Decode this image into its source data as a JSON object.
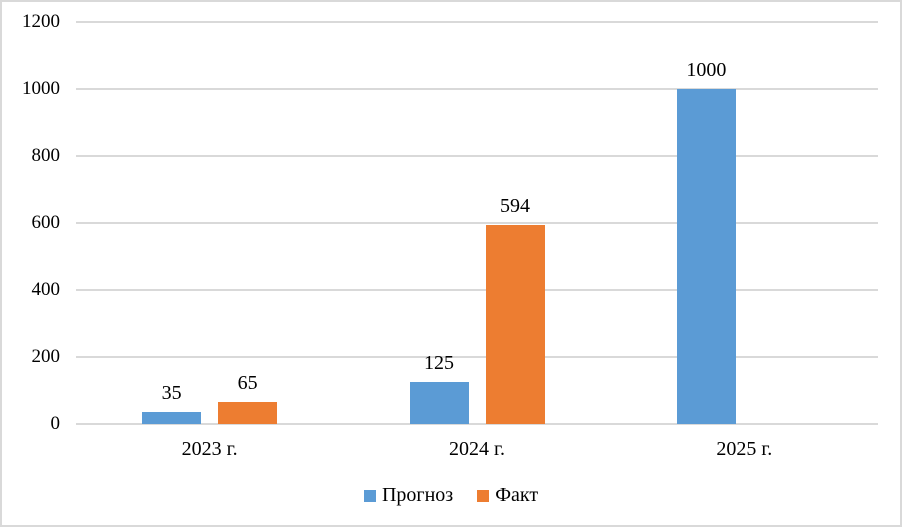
{
  "chart_data": {
    "type": "bar",
    "categories": [
      "2023 г.",
      "2024 г.",
      "2025 г."
    ],
    "series": [
      {
        "name": "Прогноз",
        "color": "#5B9BD5",
        "values": [
          35,
          125,
          1000
        ]
      },
      {
        "name": "Факт",
        "color": "#ED7D31",
        "values": [
          65,
          594,
          null
        ]
      }
    ],
    "title": "",
    "xlabel": "",
    "ylabel": "",
    "ylim": [
      0,
      1200
    ],
    "ytick_step": 200,
    "ytick_labels": [
      "0",
      "200",
      "400",
      "600",
      "800",
      "1000",
      "1200"
    ],
    "grid": true,
    "data_labels": true,
    "legend_position": "bottom"
  },
  "colors": {
    "series_forecast": "#5B9BD5",
    "series_fact": "#ED7D31",
    "gridline": "#d9d9d9",
    "frame_border": "#d9d9d9",
    "text": "#000000",
    "background": "#ffffff"
  }
}
